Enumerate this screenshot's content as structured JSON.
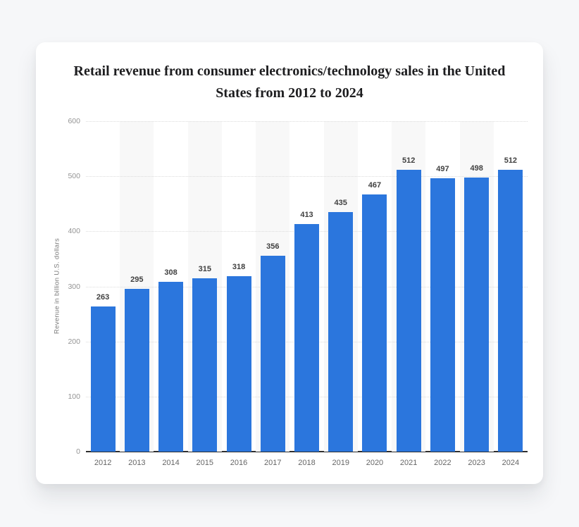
{
  "page": {
    "background_color": "#f6f7f9"
  },
  "card": {
    "background_color": "#ffffff"
  },
  "chart_data": {
    "type": "bar",
    "title": "Retail revenue from consumer electronics/technology sales in the United States from 2012 to 2024",
    "ylabel": "Revenue in billion U.S. dollars",
    "xlabel": "",
    "categories": [
      "2012",
      "2013",
      "2014",
      "2015",
      "2016",
      "2017",
      "2018",
      "2019",
      "2020",
      "2021",
      "2022",
      "2023",
      "2024"
    ],
    "values": [
      263,
      295,
      308,
      315,
      318,
      356,
      413,
      435,
      467,
      512,
      497,
      498,
      512
    ],
    "ylim": [
      0,
      600
    ],
    "yticks": [
      0,
      100,
      200,
      300,
      400,
      500,
      600
    ],
    "grid": "horizontal-dotted",
    "alternating_column_bands": true,
    "legend_position": "none",
    "value_labels": "above-bars",
    "colors": {
      "bar": "#2b76dd",
      "alt_band": "#f8f8f8",
      "gridline": "#dcdcdc",
      "axis_line": "#2e2e2e",
      "value_label": "#404040",
      "tick_label": "#949494",
      "category_label": "#666666",
      "title": "#1d1d1f",
      "ylabel": "#7a7a7a",
      "page_background": "#f6f7f9",
      "card_background": "#ffffff"
    }
  }
}
